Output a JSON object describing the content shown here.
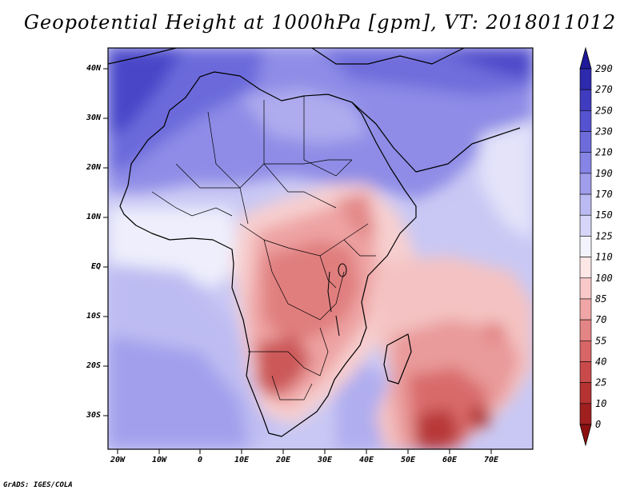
{
  "title": "Geopotential Height at 1000hPa [gpm], VT: 2018011012",
  "credit": "GrADS: IGES/COLA",
  "map": {
    "variable": "Geopotential Height",
    "level": "1000hPa",
    "units": "gpm",
    "valid_time": "2018011012",
    "lon_labels": [
      "20W",
      "10W",
      "0",
      "10E",
      "20E",
      "30E",
      "40E",
      "50E",
      "60E",
      "70E"
    ],
    "lat_labels": [
      "40N",
      "30N",
      "20N",
      "10N",
      "EQ",
      "10S",
      "20S",
      "30S"
    ]
  },
  "colorbar": {
    "levels": [
      "290",
      "270",
      "250",
      "230",
      "210",
      "190",
      "170",
      "150",
      "125",
      "110",
      "100",
      "85",
      "70",
      "55",
      "40",
      "25",
      "10",
      "0"
    ],
    "colors": [
      "#1e1a9a",
      "#2e2aad",
      "#3f3cbf",
      "#5553cf",
      "#6e6cdb",
      "#8684e4",
      "#a09eeb",
      "#bbbaf2",
      "#d7d6f8",
      "#f3f3fd",
      "#fde6e6",
      "#f9c8c8",
      "#f0a6a6",
      "#e48585",
      "#d86666",
      "#c94a4a",
      "#b53333",
      "#a01f1f",
      "#8c1010"
    ]
  }
}
